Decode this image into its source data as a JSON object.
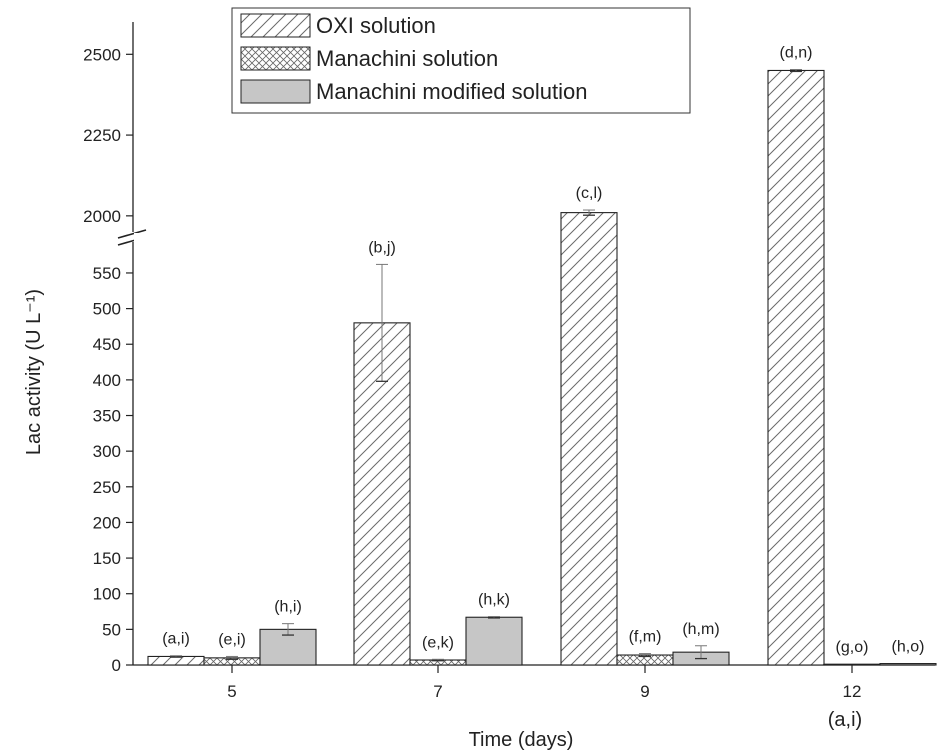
{
  "chart_data": {
    "type": "bar",
    "xlabel": "Time (days)",
    "ylabel": "Lac activity (U L⁻¹)",
    "categories": [
      "5",
      "7",
      "9",
      "12"
    ],
    "ylim": [
      0,
      2600
    ],
    "axis_break": [
      590,
      1950
    ],
    "y_ticks": [
      0,
      50,
      100,
      150,
      200,
      250,
      300,
      350,
      400,
      450,
      500,
      550,
      2000,
      2250,
      2500
    ],
    "grid": false,
    "legend_position": "top-left",
    "series": [
      {
        "name": "OXI solution",
        "pattern": "diagonal-hatch",
        "color": "#ffffff",
        "values": [
          12,
          480,
          2010,
          2450
        ],
        "errors": [
          1,
          82,
          8,
          3
        ],
        "labels": [
          "(a,i)",
          "(b,j)",
          "(c,l)",
          "(d,n)"
        ]
      },
      {
        "name": "Manachini solution",
        "pattern": "cross-hatch",
        "color": "#ffffff",
        "values": [
          10,
          7,
          14,
          0
        ],
        "errors": [
          2,
          1,
          2,
          0
        ],
        "labels": [
          "(e,i)",
          "(e,k)",
          "(f,m)",
          "(g,o)"
        ]
      },
      {
        "name": "Manachini modified solution",
        "pattern": "solid",
        "color": "#c6c6c6",
        "values": [
          50,
          67,
          18,
          2
        ],
        "errors": [
          8,
          1,
          9,
          0
        ],
        "labels": [
          "(h,i)",
          "(h,k)",
          "(h,m)",
          "(h,o)"
        ]
      }
    ],
    "extra_annotation": "(a,i)"
  }
}
